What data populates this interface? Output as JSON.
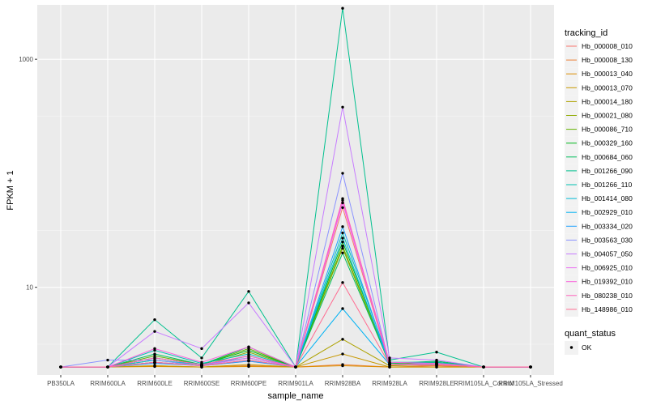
{
  "chart_data": {
    "type": "line",
    "title": "",
    "xlabel": "sample_name",
    "ylabel": "FPKM + 1",
    "y_scale": "log10",
    "ylim": [
      1.7,
      3000
    ],
    "y_ticks": [
      {
        "value": 10,
        "label": "10"
      },
      {
        "value": 1000,
        "label": "1000"
      }
    ],
    "grid": true,
    "background": "#ebebeb",
    "legend_position": "right",
    "categories": [
      "PB350LA",
      "RRIM600LA",
      "RRIM600LE",
      "RRIM600SE",
      "RRIM600PE",
      "RRIM901LA",
      "RRIM928BA",
      "RRIM928LA",
      "RRIM928LE",
      "RRIM105LA_Control",
      "RRIM105LA_Stressed"
    ],
    "legend_color_title": "tracking_id",
    "legend_shape_title": "quant_status",
    "quant_status": [
      {
        "label": "OK",
        "marker": "point",
        "color": "#000000"
      }
    ],
    "series": [
      {
        "name": "Hb_000008_010",
        "color": "#F8766D",
        "values": [
          2,
          2,
          2.2,
          2.05,
          2.25,
          2,
          50,
          2.1,
          2.05,
          2,
          2
        ]
      },
      {
        "name": "Hb_000008_130",
        "color": "#EC8239",
        "values": [
          2,
          2,
          2.05,
          2,
          2.05,
          2,
          2.1,
          2,
          2.05,
          2,
          2
        ]
      },
      {
        "name": "Hb_000013_040",
        "color": "#DB8E00",
        "values": [
          2,
          2,
          2.02,
          2,
          2.02,
          2,
          2.05,
          2,
          2,
          2,
          2
        ]
      },
      {
        "name": "Hb_000013_070",
        "color": "#C79800",
        "values": [
          2,
          2,
          2.05,
          2,
          2.1,
          2,
          2.6,
          2,
          2,
          2,
          2
        ]
      },
      {
        "name": "Hb_000014_180",
        "color": "#AEA200",
        "values": [
          2,
          2,
          2.2,
          2.05,
          2.5,
          2,
          3.5,
          2.05,
          2.1,
          2,
          2
        ]
      },
      {
        "name": "Hb_000021_080",
        "color": "#8FAA00",
        "values": [
          2,
          2,
          2.3,
          2.05,
          2.7,
          2,
          22,
          2.1,
          2.15,
          2,
          2
        ]
      },
      {
        "name": "Hb_000086_710",
        "color": "#64B200",
        "values": [
          2,
          2,
          2.5,
          2.1,
          2.9,
          2,
          23,
          2.1,
          2.2,
          2,
          2
        ]
      },
      {
        "name": "Hb_000329_160",
        "color": "#00B81B",
        "values": [
          2,
          2,
          2.4,
          2.1,
          2.8,
          2,
          25,
          2.15,
          2.2,
          2,
          2
        ]
      },
      {
        "name": "Hb_000684_060",
        "color": "#00BD5C",
        "values": [
          2,
          2,
          2.6,
          2.1,
          3.0,
          2,
          20,
          2.15,
          2.25,
          2,
          2
        ]
      },
      {
        "name": "Hb_001266_090",
        "color": "#00C08E",
        "values": [
          2,
          2,
          5.2,
          2.4,
          9.2,
          2,
          2800,
          2.3,
          2.7,
          2,
          2
        ]
      },
      {
        "name": "Hb_001266_110",
        "color": "#00C1B2",
        "values": [
          2,
          2,
          2.8,
          2.15,
          2.6,
          2,
          30,
          2.2,
          2.2,
          2,
          2
        ]
      },
      {
        "name": "Hb_001414_080",
        "color": "#00BCD6",
        "values": [
          2,
          2,
          2.3,
          2.1,
          2.4,
          2,
          27,
          2.1,
          2.15,
          2,
          2
        ]
      },
      {
        "name": "Hb_002929_010",
        "color": "#00B2F3",
        "values": [
          2,
          2,
          2.2,
          2.05,
          2.3,
          2,
          6.5,
          2.1,
          2.1,
          2,
          2
        ]
      },
      {
        "name": "Hb_003334_020",
        "color": "#1FA2FF",
        "values": [
          2,
          2,
          2.15,
          2.05,
          2.25,
          2,
          34,
          2.1,
          2.1,
          2,
          2
        ]
      },
      {
        "name": "Hb_003563_030",
        "color": "#8B93FF",
        "values": [
          2,
          2.3,
          2.3,
          2.05,
          2.5,
          2,
          100,
          2.1,
          2.15,
          2,
          2
        ]
      },
      {
        "name": "Hb_004057_050",
        "color": "#C77CFF",
        "values": [
          2,
          2,
          4.1,
          2.9,
          7.3,
          2,
          380,
          2.4,
          2.3,
          2,
          2
        ]
      },
      {
        "name": "Hb_006925_010",
        "color": "#EA6AF1",
        "values": [
          2,
          2,
          2.2,
          2.05,
          2.4,
          2,
          55,
          2.1,
          2.1,
          2,
          2
        ]
      },
      {
        "name": "Hb_019392_010",
        "color": "#FA62DB",
        "values": [
          2,
          2,
          2.9,
          2.2,
          3.0,
          2,
          58,
          2.2,
          2.15,
          2,
          2
        ]
      },
      {
        "name": "Hb_080238_010",
        "color": "#FF62BC",
        "values": [
          2,
          2,
          2.4,
          2.1,
          2.5,
          2,
          60,
          2.1,
          2.1,
          2,
          2
        ]
      },
      {
        "name": "Hb_148986_010",
        "color": "#FF6C91",
        "values": [
          2,
          2,
          2.2,
          2.05,
          2.3,
          2,
          11,
          2.1,
          2.1,
          2,
          2
        ]
      }
    ]
  }
}
